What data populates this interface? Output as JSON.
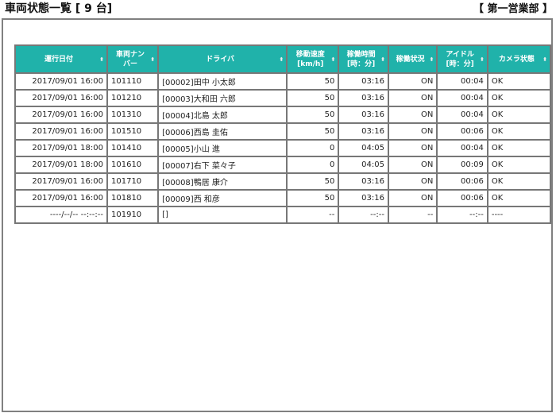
{
  "header": {
    "title": "車両状態一覧 [ 9 台]",
    "department": "【 第一営業部 】"
  },
  "table": {
    "columns": [
      "運行日付",
      "車両ナンバー",
      "ドライバ",
      "移動速度[km/h]",
      "稼働時間[時：分]",
      "稼働状況",
      "アイドル[時：分]",
      "カメラ状態"
    ],
    "columns_display": [
      [
        "運行日付"
      ],
      [
        "車両ナン",
        "バー"
      ],
      [
        "ドライバ"
      ],
      [
        "移動速度",
        "[km/h]"
      ],
      [
        "稼働時間",
        "[時：分]"
      ],
      [
        "稼働状況"
      ],
      [
        "アイドル",
        "[時：分]"
      ],
      [
        "カメラ状態"
      ]
    ],
    "sort_icon": "sort-arrows-icon",
    "rows": [
      [
        "2017/09/01 16:00",
        "101110",
        "[00002]田中 小太郎",
        "50",
        "03:16",
        "ON",
        "00:04",
        "OK"
      ],
      [
        "2017/09/01 16:00",
        "101210",
        "[00003]大和田 六郎",
        "50",
        "03:16",
        "ON",
        "00:04",
        "OK"
      ],
      [
        "2017/09/01 16:00",
        "101310",
        "[00004]北島 太郎",
        "50",
        "03:16",
        "ON",
        "00:04",
        "OK"
      ],
      [
        "2017/09/01 16:00",
        "101510",
        "[00006]西島 圭佑",
        "50",
        "03:16",
        "ON",
        "00:06",
        "OK"
      ],
      [
        "2017/09/01 18:00",
        "101410",
        "[00005]小山 進",
        "0",
        "04:05",
        "ON",
        "00:04",
        "OK"
      ],
      [
        "2017/09/01 18:00",
        "101610",
        "[00007]右下 菜々子",
        "0",
        "04:05",
        "ON",
        "00:09",
        "OK"
      ],
      [
        "2017/09/01 16:00",
        "101710",
        "[00008]鴨居 康介",
        "50",
        "03:16",
        "ON",
        "00:06",
        "OK"
      ],
      [
        "2017/09/01 16:00",
        "101810",
        "[00009]西 和彦",
        "50",
        "03:16",
        "ON",
        "00:06",
        "OK"
      ],
      [
        "----/--/-- --:--:--",
        "101910",
        "[]",
        "--",
        "--:--",
        "--",
        "--:--",
        "----"
      ]
    ]
  },
  "colors": {
    "header_bg": "#20b2aa",
    "border": "#777777"
  }
}
